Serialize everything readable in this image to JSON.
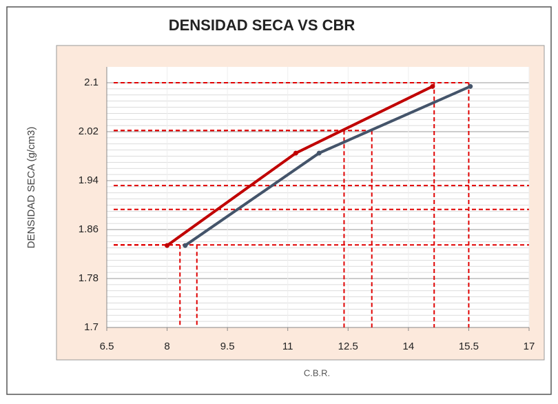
{
  "chart_data": {
    "type": "line",
    "title": "DENSIDAD SECA VS CBR",
    "xlabel": "C.B.R.",
    "ylabel": "DENSIDAD SECA (g/cm3)",
    "series": [
      {
        "color": "#c00000",
        "x": [
          8.0,
          11.2,
          14.6
        ],
        "values": [
          1.834,
          1.985,
          2.094
        ]
      },
      {
        "color": "#44546a",
        "x": [
          8.45,
          11.78,
          15.54
        ],
        "values": [
          1.834,
          1.985,
          2.094
        ]
      }
    ],
    "xlim": [
      6.5,
      17
    ],
    "xticks": [
      6.5,
      8,
      9.5,
      11,
      12.5,
      14,
      15.5,
      17
    ],
    "ylim": [
      1.7,
      2.1
    ],
    "yticks": [
      1.7,
      1.78,
      1.86,
      1.94,
      2.02,
      2.1
    ],
    "guide_color": "#e00000",
    "guides": [
      {
        "x": 8.32,
        "y": 1.835
      },
      {
        "x": 8.74,
        "y": 1.835
      },
      {
        "x": 12.4,
        "y": 2.022
      },
      {
        "x": 13.09,
        "y": 2.022
      },
      {
        "x": 14.64,
        "y": 2.1
      },
      {
        "x": 15.5,
        "y": 2.1
      }
    ],
    "hlines": [
      1.932,
      1.893,
      1.835
    ],
    "grid": true
  }
}
